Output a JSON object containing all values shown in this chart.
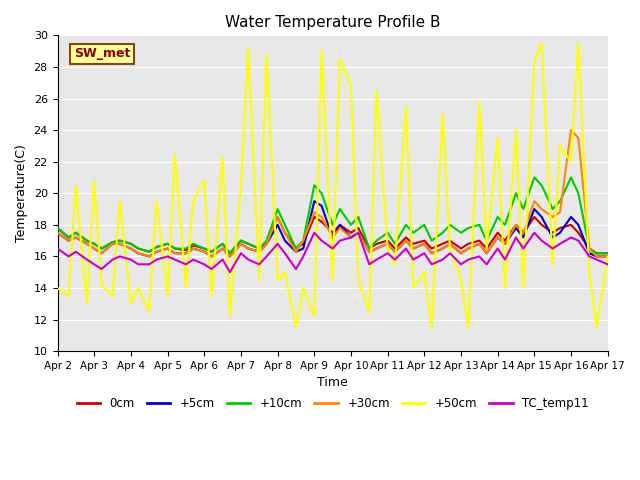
{
  "title": "Water Temperature Profile B",
  "xlabel": "Time",
  "ylabel": "Temperature(C)",
  "xlim": [
    0,
    15
  ],
  "ylim": [
    10,
    30
  ],
  "yticks": [
    10,
    12,
    14,
    16,
    18,
    20,
    22,
    24,
    26,
    28,
    30
  ],
  "xtick_labels": [
    "Apr 2",
    "Apr 3",
    "Apr 4",
    "Apr 5",
    "Apr 6",
    "Apr 7",
    "Apr 8",
    "Apr 9",
    "Apr 10",
    "Apr 11",
    "Apr 12",
    "Apr 13",
    "Apr 14",
    "Apr 15",
    "Apr 16",
    "Apr 17"
  ],
  "bg_color": "#e8e8e8",
  "fig_color": "#ffffff",
  "legend_label": "SW_met",
  "series": {
    "0cm": {
      "color": "#cc0000",
      "lw": 1.5
    },
    "+5cm": {
      "color": "#0000cc",
      "lw": 1.5
    },
    "+10cm": {
      "color": "#00cc00",
      "lw": 1.5
    },
    "+30cm": {
      "color": "#ff8800",
      "lw": 1.5
    },
    "+50cm": {
      "color": "#ffff00",
      "lw": 1.5
    },
    "TC_temp11": {
      "color": "#cc00cc",
      "lw": 1.5
    }
  },
  "x_0cm": [
    0,
    0.3,
    0.5,
    0.8,
    1.0,
    1.2,
    1.5,
    1.7,
    2.0,
    2.2,
    2.5,
    2.7,
    3.0,
    3.2,
    3.5,
    3.7,
    4.0,
    4.2,
    4.5,
    4.7,
    5.0,
    5.2,
    5.5,
    5.7,
    6.0,
    6.2,
    6.5,
    6.7,
    7.0,
    7.2,
    7.5,
    7.7,
    8.0,
    8.2,
    8.5,
    8.7,
    9.0,
    9.2,
    9.5,
    9.7,
    10.0,
    10.2,
    10.5,
    10.7,
    11.0,
    11.2,
    11.5,
    11.7,
    12.0,
    12.2,
    12.5,
    12.7,
    13.0,
    13.2,
    13.5,
    13.7,
    14.0,
    14.2,
    14.5,
    14.7,
    15.0
  ],
  "y_0cm": [
    17.8,
    17.2,
    17.5,
    17.0,
    16.8,
    16.5,
    16.9,
    17.0,
    16.8,
    16.5,
    16.3,
    16.6,
    16.8,
    16.5,
    16.4,
    16.7,
    16.5,
    16.3,
    16.8,
    16.2,
    17.0,
    16.8,
    16.5,
    16.9,
    18.5,
    17.5,
    16.5,
    16.8,
    18.5,
    18.2,
    17.5,
    18.0,
    17.5,
    17.8,
    16.5,
    16.8,
    17.0,
    16.5,
    17.2,
    16.8,
    17.0,
    16.5,
    16.8,
    17.0,
    16.5,
    16.8,
    17.0,
    16.5,
    17.5,
    17.0,
    18.0,
    17.5,
    18.5,
    18.0,
    17.5,
    17.8,
    18.0,
    17.5,
    16.5,
    16.2,
    16.2
  ],
  "y_5cm": [
    17.5,
    17.0,
    17.2,
    16.8,
    16.5,
    16.2,
    16.8,
    16.8,
    16.5,
    16.2,
    16.0,
    16.3,
    16.5,
    16.2,
    16.2,
    16.5,
    16.3,
    16.0,
    16.5,
    16.0,
    16.8,
    16.5,
    16.3,
    16.8,
    18.0,
    17.0,
    16.3,
    16.5,
    19.5,
    19.2,
    17.2,
    18.0,
    17.2,
    17.5,
    16.3,
    16.5,
    16.8,
    16.3,
    17.0,
    16.5,
    16.8,
    16.2,
    16.5,
    16.8,
    16.2,
    16.5,
    16.8,
    16.2,
    17.2,
    16.8,
    17.8,
    17.2,
    19.0,
    18.5,
    17.2,
    17.5,
    18.5,
    18.0,
    16.2,
    16.0,
    16.0
  ],
  "y_10cm": [
    17.8,
    17.2,
    17.5,
    17.0,
    16.8,
    16.5,
    16.9,
    17.0,
    16.8,
    16.5,
    16.3,
    16.6,
    16.8,
    16.5,
    16.5,
    16.8,
    16.5,
    16.3,
    16.8,
    16.2,
    17.0,
    16.8,
    16.5,
    17.0,
    19.0,
    18.0,
    16.5,
    17.0,
    20.5,
    20.0,
    18.0,
    19.0,
    18.0,
    18.5,
    16.5,
    17.0,
    17.5,
    16.8,
    18.0,
    17.5,
    18.0,
    17.0,
    17.5,
    18.0,
    17.5,
    17.8,
    18.0,
    17.0,
    18.5,
    18.0,
    20.0,
    19.0,
    21.0,
    20.5,
    19.0,
    19.5,
    21.0,
    20.0,
    16.5,
    16.2,
    16.2
  ],
  "y_30cm": [
    17.5,
    17.0,
    17.2,
    16.8,
    16.5,
    16.2,
    16.8,
    16.8,
    16.5,
    16.2,
    16.0,
    16.3,
    16.5,
    16.2,
    16.2,
    16.5,
    16.3,
    16.0,
    16.5,
    16.0,
    16.8,
    16.5,
    16.3,
    16.8,
    18.5,
    17.5,
    16.3,
    17.0,
    18.8,
    18.5,
    17.2,
    17.8,
    17.2,
    17.5,
    16.3,
    16.5,
    16.8,
    16.3,
    17.0,
    16.5,
    16.8,
    16.2,
    16.5,
    16.8,
    16.2,
    16.5,
    16.8,
    16.2,
    17.2,
    16.8,
    18.0,
    17.5,
    19.5,
    19.0,
    18.5,
    18.8,
    24.0,
    23.5,
    16.5,
    16.0,
    16.0
  ],
  "y_50cm": [
    14.0,
    13.5,
    20.5,
    13.0,
    20.8,
    14.2,
    13.5,
    19.5,
    13.0,
    14.0,
    12.5,
    19.5,
    13.5,
    22.5,
    14.0,
    19.5,
    20.8,
    13.5,
    22.3,
    12.2,
    20.5,
    29.2,
    14.5,
    28.8,
    14.5,
    15.0,
    11.5,
    14.0,
    12.2,
    29.0,
    14.5,
    28.5,
    26.8,
    14.5,
    12.5,
    26.5,
    16.5,
    15.5,
    25.5,
    14.0,
    15.0,
    11.5,
    25.0,
    16.5,
    14.5,
    11.5,
    25.8,
    16.5,
    23.5,
    14.0,
    24.0,
    14.0,
    28.4,
    29.5,
    15.5,
    23.0,
    22.0,
    29.5,
    15.0,
    11.5,
    16.0
  ],
  "y_tc11": [
    16.5,
    16.0,
    16.3,
    15.8,
    15.5,
    15.2,
    15.8,
    16.0,
    15.8,
    15.5,
    15.5,
    15.8,
    16.0,
    15.8,
    15.5,
    15.8,
    15.5,
    15.2,
    15.8,
    15.0,
    16.2,
    15.8,
    15.5,
    16.0,
    16.8,
    16.2,
    15.2,
    16.0,
    17.5,
    17.0,
    16.5,
    17.0,
    17.2,
    17.5,
    15.5,
    15.8,
    16.2,
    15.8,
    16.5,
    15.8,
    16.2,
    15.5,
    15.8,
    16.2,
    15.5,
    15.8,
    16.0,
    15.5,
    16.5,
    15.8,
    17.2,
    16.5,
    17.5,
    17.0,
    16.5,
    16.8,
    17.2,
    17.0,
    16.0,
    15.8,
    15.5
  ]
}
